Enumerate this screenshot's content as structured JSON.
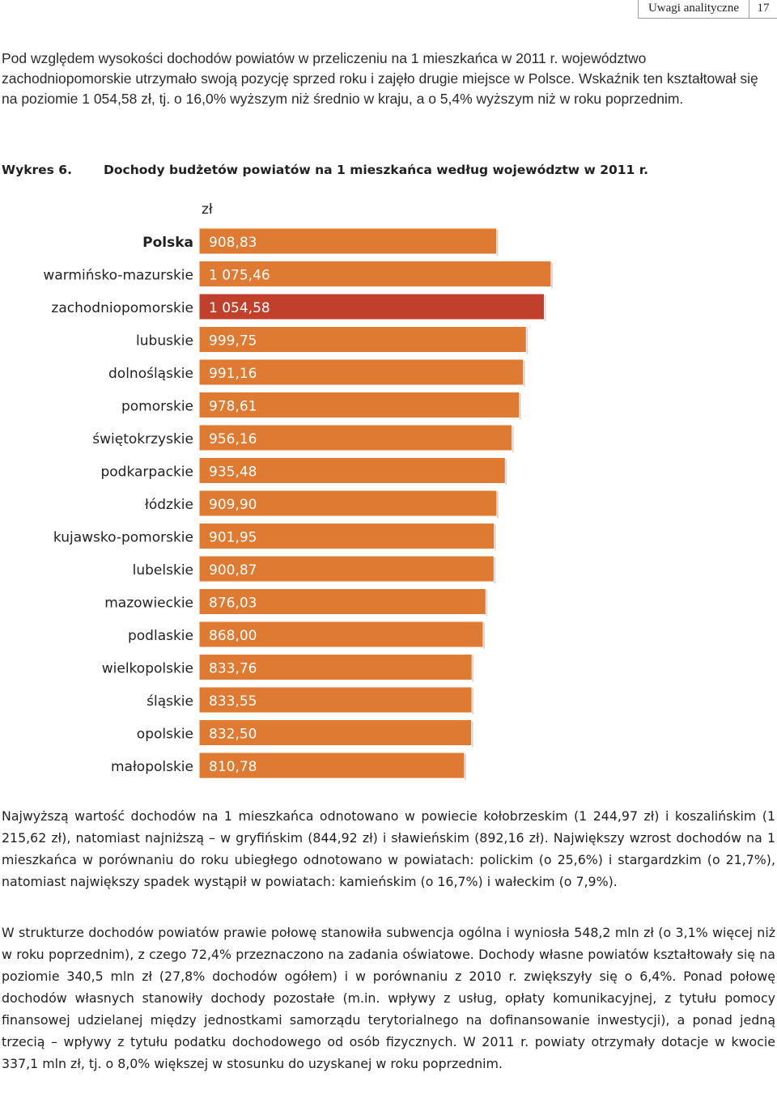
{
  "running_header": {
    "section_title": "Uwagi analityczne",
    "page_number": "17"
  },
  "intro_paragraph": "Pod względem wysokości dochodów powiatów w przeliczeniu na 1 mieszkańca w 2011 r. województwo zachodniopomorskie utrzymało swoją pozycję sprzed roku i zajęło drugie miejsce w Polsce. Wskaźnik ten kształtował się na poziomie 1 054,58 zł, tj. o 16,0% wyższym niż średnio w kraju, a o 5,4% wyższym niż w roku poprzednim.",
  "figure": {
    "number": "Wykres 6.",
    "title": "Dochody budżetów powiatów na 1 mieszkańca według województw w 2011 r."
  },
  "chart_data": {
    "type": "bar",
    "orientation": "horizontal",
    "unit_label": "zł",
    "title": "Dochody budżetów powiatów na 1 mieszkańca według województw w 2011 r.",
    "categories": [
      "Polska",
      "warmińsko-mazurskie",
      "zachodniopomorskie",
      "lubuskie",
      "dolnośląskie",
      "pomorskie",
      "świętokrzyskie",
      "podkarpackie",
      "łódzkie",
      "kujawsko-pomorskie",
      "lubelskie",
      "mazowieckie",
      "podlaskie",
      "wielkopolskie",
      "śląskie",
      "opolskie",
      "małopolskie"
    ],
    "values": [
      908.83,
      1075.46,
      1054.58,
      999.75,
      991.16,
      978.61,
      956.16,
      935.48,
      909.9,
      901.95,
      900.87,
      876.03,
      868.0,
      833.76,
      833.55,
      832.5,
      810.78
    ],
    "value_labels": [
      "908,83",
      "1 075,46",
      "1 054,58",
      "999,75",
      "991,16",
      "978,61",
      "956,16",
      "935,48",
      "909,90",
      "901,95",
      "900,87",
      "876,03",
      "868,00",
      "833,76",
      "833,55",
      "832,50",
      "810,78"
    ],
    "bold_categories": [
      "Polska"
    ],
    "highlight_category": "zachodniopomorskie",
    "colors": {
      "bar": "#df7a32",
      "highlight": "#c0402c",
      "bar_label": "#ffffff",
      "category_label": "#231f20"
    },
    "grid": false,
    "legend": "none"
  },
  "body_paragraphs": [
    "Najwyższą wartość dochodów na 1 mieszkańca odnotowano w powiecie kołobrzeskim (1 244,97 zł) i koszalińskim (1 215,62 zł), natomiast najniższą – w gryfińskim (844,92 zł) i sławieńskim (892,16 zł). Największy wzrost dochodów na 1 mieszkańca w porównaniu do roku ubiegłego odnotowano w powiatach: polickim (o 25,6%) i stargardzkim (o 21,7%), natomiast największy spadek wystąpił w powiatach: kamieńskim (o 16,7%) i wałeckim (o 7,9%).",
    "W strukturze dochodów powiatów prawie połowę stanowiła subwencja ogólna i wyniosła 548,2 mln zł (o 3,1% więcej niż w roku poprzednim), z czego 72,4% przeznaczono na zadania oświatowe. Dochody własne powiatów kształtowały się na poziomie 340,5 mln zł (27,8% dochodów ogółem) i w porównaniu z 2010 r. zwiększyły się o 6,4%. Ponad połowę dochodów własnych stanowiły dochody pozostałe (m.in. wpływy z usług, opłaty komunikacyjnej, z tytułu pomocy finansowej udzielanej między jednostkami samorządu terytorialnego na dofinansowanie inwestycji), a ponad jedną trzecią – wpływy z tytułu podatku dochodowego od osób fizycznych. W 2011 r. powiaty otrzymały dotacje w kwocie 337,1 mln zł, tj. o 8,0% większej w stosunku do uzyskanej w roku poprzednim."
  ]
}
